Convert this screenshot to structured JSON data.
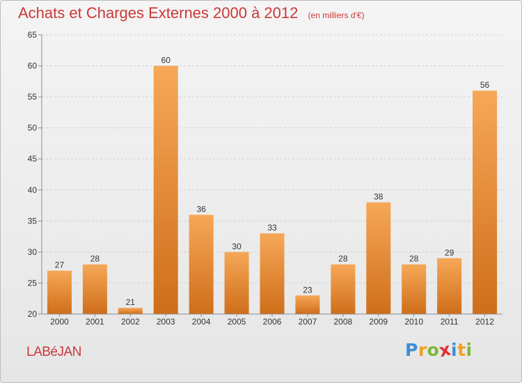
{
  "header": {
    "title": "Achats et Charges Externes 2000 à 2012",
    "subtitle": "(en milliers d'€)"
  },
  "footer": {
    "city": "LABéJAN",
    "logo": {
      "letters": [
        "P",
        "r",
        "o",
        "x",
        "i",
        "t",
        "i"
      ],
      "colors": [
        "#3a8fd8",
        "#f0a020",
        "#7ab83a",
        "#e03030",
        "#3a8fd8",
        "#f0a020",
        "#7ab83a"
      ]
    }
  },
  "colors": {
    "bar_top": "#f6a857",
    "bar_bottom": "#cf6e1a",
    "grid": "#cfcfcf",
    "axis": "#8c8c8c",
    "text": "#333333"
  },
  "chart_data": {
    "type": "bar",
    "title": "Achats et Charges Externes 2000 à 2012",
    "subtitle": "(en milliers d'€)",
    "xlabel": "",
    "ylabel": "",
    "categories": [
      "2000",
      "2001",
      "2002",
      "2003",
      "2004",
      "2005",
      "2006",
      "2007",
      "2008",
      "2009",
      "2010",
      "2011",
      "2012"
    ],
    "values": [
      27,
      28,
      21,
      60,
      36,
      30,
      33,
      23,
      28,
      38,
      28,
      29,
      56
    ],
    "ylim": [
      20,
      65
    ],
    "yticks": [
      20,
      25,
      30,
      35,
      40,
      45,
      50,
      55,
      60,
      65
    ],
    "grid": true,
    "data_labels": true
  }
}
